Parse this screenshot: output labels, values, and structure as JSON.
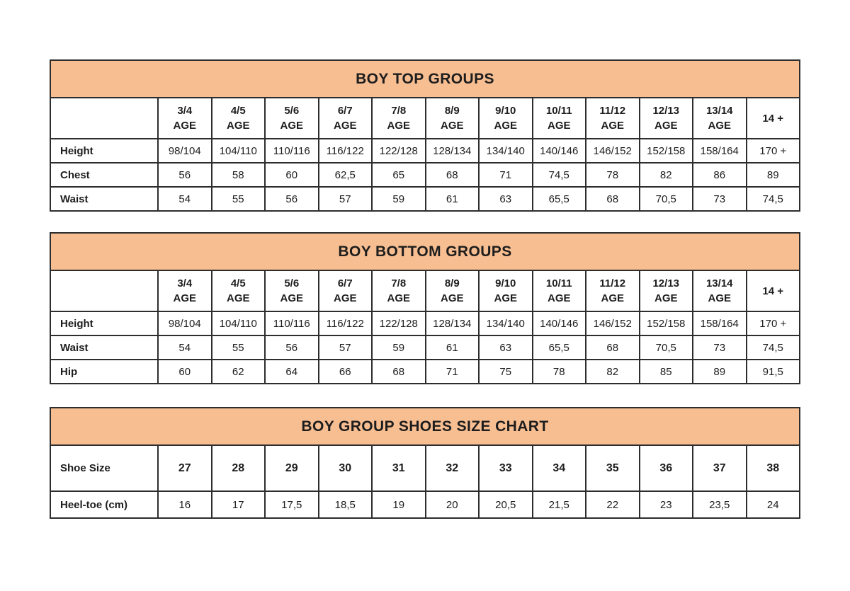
{
  "colors": {
    "band_background": "#F7BE92",
    "border": "#2d2d2d",
    "text": "#1d1d1d",
    "page_background": "#ffffff"
  },
  "tables": [
    {
      "title": "BOY TOP GROUPS",
      "columns": [
        {
          "label": "3/4",
          "sub": "AGE"
        },
        {
          "label": "4/5",
          "sub": "AGE"
        },
        {
          "label": "5/6",
          "sub": "AGE"
        },
        {
          "label": "6/7",
          "sub": "AGE"
        },
        {
          "label": "7/8",
          "sub": "AGE"
        },
        {
          "label": "8/9",
          "sub": "AGE"
        },
        {
          "label": "9/10",
          "sub": "AGE"
        },
        {
          "label": "10/11",
          "sub": "AGE"
        },
        {
          "label": "11/12",
          "sub": "AGE"
        },
        {
          "label": "12/13",
          "sub": "AGE"
        },
        {
          "label": "13/14",
          "sub": "AGE"
        },
        {
          "label": "14 +",
          "sub": ""
        }
      ],
      "rows": [
        {
          "label": "Height",
          "values": [
            "98/104",
            "104/110",
            "110/116",
            "116/122",
            "122/128",
            "128/134",
            "134/140",
            "140/146",
            "146/152",
            "152/158",
            "158/164",
            "170 +"
          ]
        },
        {
          "label": "Chest",
          "values": [
            "56",
            "58",
            "60",
            "62,5",
            "65",
            "68",
            "71",
            "74,5",
            "78",
            "82",
            "86",
            "89"
          ]
        },
        {
          "label": "Waist",
          "values": [
            "54",
            "55",
            "56",
            "57",
            "59",
            "61",
            "63",
            "65,5",
            "68",
            "70,5",
            "73",
            "74,5"
          ]
        }
      ]
    },
    {
      "title": "BOY BOTTOM GROUPS",
      "columns": [
        {
          "label": "3/4",
          "sub": "AGE"
        },
        {
          "label": "4/5",
          "sub": "AGE"
        },
        {
          "label": "5/6",
          "sub": "AGE"
        },
        {
          "label": "6/7",
          "sub": "AGE"
        },
        {
          "label": "7/8",
          "sub": "AGE"
        },
        {
          "label": "8/9",
          "sub": "AGE"
        },
        {
          "label": "9/10",
          "sub": "AGE"
        },
        {
          "label": "10/11",
          "sub": "AGE"
        },
        {
          "label": "11/12",
          "sub": "AGE"
        },
        {
          "label": "12/13",
          "sub": "AGE"
        },
        {
          "label": "13/14",
          "sub": "AGE"
        },
        {
          "label": "14 +",
          "sub": ""
        }
      ],
      "rows": [
        {
          "label": "Height",
          "values": [
            "98/104",
            "104/110",
            "110/116",
            "116/122",
            "122/128",
            "128/134",
            "134/140",
            "140/146",
            "146/152",
            "152/158",
            "158/164",
            "170 +"
          ]
        },
        {
          "label": "Waist",
          "values": [
            "54",
            "55",
            "56",
            "57",
            "59",
            "61",
            "63",
            "65,5",
            "68",
            "70,5",
            "73",
            "74,5"
          ]
        },
        {
          "label": "Hip",
          "values": [
            "60",
            "62",
            "64",
            "66",
            "68",
            "71",
            "75",
            "78",
            "82",
            "85",
            "89",
            "91,5"
          ]
        }
      ]
    },
    {
      "title": "BOY GROUP SHOES SIZE CHART",
      "columns": null,
      "rows": [
        {
          "label": "Shoe Size",
          "emphasis": true,
          "values": [
            "27",
            "28",
            "29",
            "30",
            "31",
            "32",
            "33",
            "34",
            "35",
            "36",
            "37",
            "38"
          ]
        },
        {
          "label": "Heel-toe (cm)",
          "emphasis": false,
          "values": [
            "16",
            "17",
            "17,5",
            "18,5",
            "19",
            "20",
            "20,5",
            "21,5",
            "22",
            "23",
            "23,5",
            "24"
          ]
        }
      ]
    }
  ]
}
